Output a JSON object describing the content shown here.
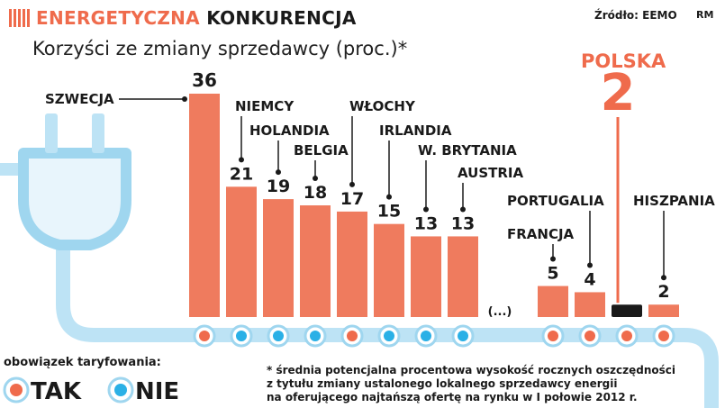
{
  "header": {
    "title_highlight": "ENERGETYCZNA",
    "title_rest": "KONKURENCJA",
    "subtitle": "Korzyści ze zmiany sprzedawcy (proc.)*",
    "source": "Źródło: EEMO",
    "credit": "RM"
  },
  "legend": {
    "title": "obowiązek taryfowania:",
    "items": [
      {
        "label": "TAK",
        "color": "#ef6b4c"
      },
      {
        "label": "NIE",
        "color": "#2ab0e6"
      }
    ]
  },
  "footnote": [
    "* średnia potencjalna procentowa wysokość rocznych oszczędności",
    "z tytułu zmiany ustalonego lokalnego sprzedawcy energii",
    "na oferującego najtańszą ofertę na rynku w I połowie 2012 r."
  ],
  "ellipsis": "(...)",
  "colors": {
    "bar": "#ef7b5e",
    "accent": "#ef6b4c",
    "plug": "#bde3f5",
    "plug_stroke": "#9fd6ef",
    "tak": "#ef6b4c",
    "nie": "#2ab0e6"
  },
  "chart_data": {
    "type": "bar",
    "title": "Korzyści ze zmiany sprzedawcy (proc.)*",
    "categories": [
      "SZWECJA",
      "NIEMCY",
      "HOLANDIA",
      "BELGIA",
      "WŁOCHY",
      "IRLANDIA",
      "W. BRYTANIA",
      "AUSTRIA",
      "FRANCJA",
      "PORTUGALIA",
      "POLSKA",
      "HISZPANIA"
    ],
    "values": [
      36,
      21,
      19,
      18,
      17,
      15,
      13,
      13,
      5,
      4,
      2,
      2
    ],
    "regulated_tariff": [
      "TAK",
      "NIE",
      "NIE",
      "NIE",
      "TAK",
      "NIE",
      "NIE",
      "NIE",
      "TAK",
      "TAK",
      "TAK",
      "TAK"
    ],
    "highlight": "POLSKA",
    "ylim": [
      0,
      36
    ],
    "grid": false,
    "legend_position": "bottom-left"
  }
}
